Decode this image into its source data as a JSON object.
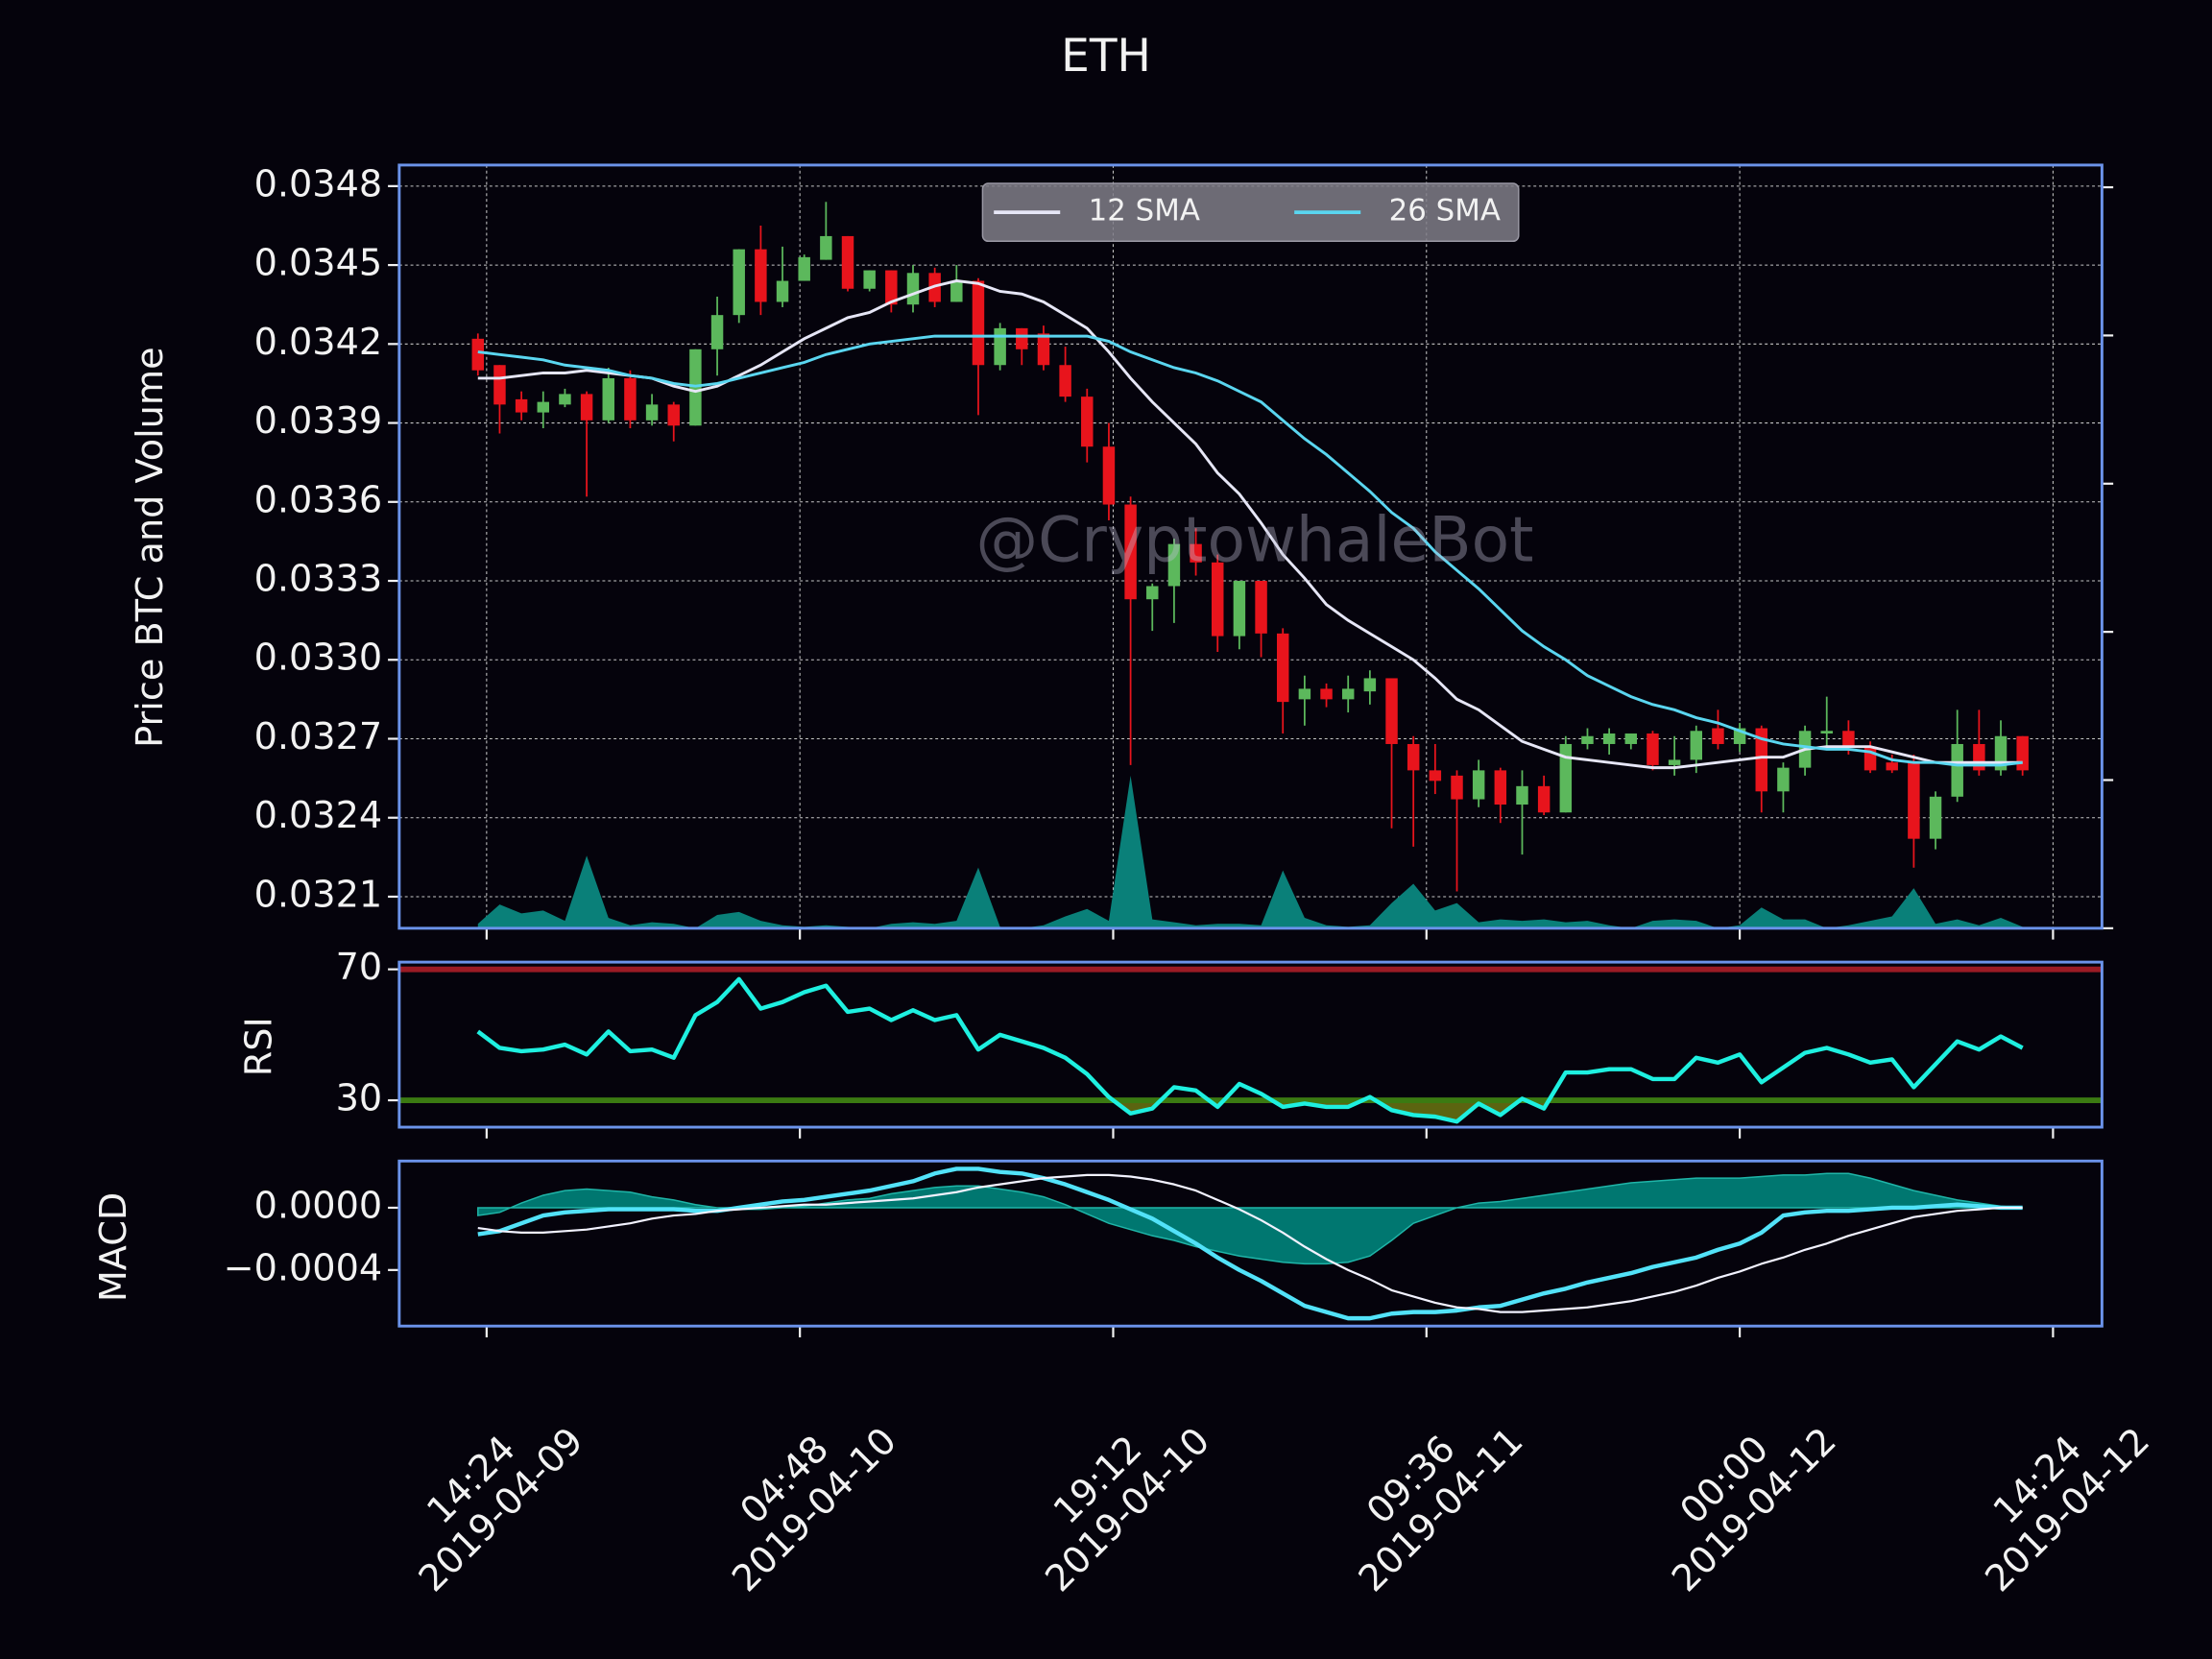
{
  "chart_data": [
    {
      "type": "candlestick",
      "title": "ETH",
      "ylabel": "Price BTC and Volume",
      "watermark": "@CryptowhaleBot",
      "x": [
        "2019-04-09 14:00",
        "2019-04-09 15:00",
        "2019-04-09 16:00",
        "2019-04-09 17:00",
        "2019-04-09 18:00",
        "2019-04-09 19:00",
        "2019-04-09 20:00",
        "2019-04-09 21:00",
        "2019-04-09 22:00",
        "2019-04-09 23:00",
        "2019-04-10 00:00",
        "2019-04-10 01:00",
        "2019-04-10 02:00",
        "2019-04-10 03:00",
        "2019-04-10 04:00",
        "2019-04-10 05:00",
        "2019-04-10 06:00",
        "2019-04-10 07:00",
        "2019-04-10 08:00",
        "2019-04-10 09:00",
        "2019-04-10 10:00",
        "2019-04-10 11:00",
        "2019-04-10 12:00",
        "2019-04-10 13:00",
        "2019-04-10 14:00",
        "2019-04-10 15:00",
        "2019-04-10 16:00",
        "2019-04-10 17:00",
        "2019-04-10 18:00",
        "2019-04-10 19:00",
        "2019-04-10 20:00",
        "2019-04-10 21:00",
        "2019-04-10 22:00",
        "2019-04-10 23:00",
        "2019-04-11 00:00",
        "2019-04-11 01:00",
        "2019-04-11 02:00",
        "2019-04-11 03:00",
        "2019-04-11 04:00",
        "2019-04-11 05:00",
        "2019-04-11 06:00",
        "2019-04-11 07:00",
        "2019-04-11 08:00",
        "2019-04-11 09:00",
        "2019-04-11 10:00",
        "2019-04-11 11:00",
        "2019-04-11 12:00",
        "2019-04-11 13:00",
        "2019-04-11 14:00",
        "2019-04-11 15:00",
        "2019-04-11 16:00",
        "2019-04-11 17:00",
        "2019-04-11 18:00",
        "2019-04-11 19:00",
        "2019-04-11 20:00",
        "2019-04-11 21:00",
        "2019-04-11 22:00",
        "2019-04-11 23:00",
        "2019-04-12 00:00",
        "2019-04-12 01:00",
        "2019-04-12 02:00",
        "2019-04-12 03:00",
        "2019-04-12 04:00",
        "2019-04-12 05:00",
        "2019-04-12 06:00",
        "2019-04-12 07:00",
        "2019-04-12 08:00",
        "2019-04-12 09:00",
        "2019-04-12 10:00",
        "2019-04-12 11:00",
        "2019-04-12 12:00",
        "2019-04-12 13:00"
      ],
      "open": [
        0.03422,
        0.03412,
        0.03399,
        0.03394,
        0.03397,
        0.03401,
        0.03391,
        0.03407,
        0.03391,
        0.03397,
        0.03389,
        0.03418,
        0.03431,
        0.03456,
        0.03436,
        0.03444,
        0.03452,
        0.03461,
        0.03441,
        0.03448,
        0.03435,
        0.03447,
        0.03436,
        0.03444,
        0.03412,
        0.03426,
        0.03424,
        0.03412,
        0.034,
        0.03381,
        0.03359,
        0.03323,
        0.03328,
        0.03344,
        0.03337,
        0.03309,
        0.0333,
        0.0331,
        0.03285,
        0.03289,
        0.03285,
        0.03288,
        0.03293,
        0.03268,
        0.03258,
        0.03256,
        0.03247,
        0.03258,
        0.03245,
        0.03252,
        0.03242,
        0.03268,
        0.03268,
        0.03268,
        0.03272,
        0.0326,
        0.03262,
        0.03274,
        0.03268,
        0.03274,
        0.0325,
        0.03259,
        0.03272,
        0.03273,
        0.03267,
        0.03261,
        0.03261,
        0.03232,
        0.03248,
        0.03268,
        0.03258,
        0.03271
      ],
      "high": [
        0.03424,
        0.03412,
        0.03402,
        0.03402,
        0.03403,
        0.03402,
        0.03411,
        0.0341,
        0.03401,
        0.03398,
        0.03418,
        0.03438,
        0.03456,
        0.03465,
        0.03457,
        0.03454,
        0.03474,
        0.03461,
        0.03448,
        0.03448,
        0.0345,
        0.03449,
        0.0345,
        0.03445,
        0.03428,
        0.03426,
        0.03427,
        0.03419,
        0.03403,
        0.0339,
        0.03362,
        0.03329,
        0.03346,
        0.0335,
        0.0334,
        0.0333,
        0.0333,
        0.03312,
        0.03294,
        0.03291,
        0.03294,
        0.03296,
        0.03293,
        0.03271,
        0.03268,
        0.03258,
        0.03262,
        0.03259,
        0.03258,
        0.03256,
        0.03271,
        0.03274,
        0.03274,
        0.03272,
        0.03273,
        0.03271,
        0.03275,
        0.03281,
        0.03276,
        0.03275,
        0.03261,
        0.03275,
        0.03286,
        0.03277,
        0.03269,
        0.03264,
        0.03264,
        0.0325,
        0.03281,
        0.03281,
        0.03277,
        0.03271
      ],
      "low": [
        0.03408,
        0.03386,
        0.03391,
        0.03388,
        0.03396,
        0.03362,
        0.0339,
        0.03388,
        0.03389,
        0.03383,
        0.03389,
        0.03408,
        0.03428,
        0.03431,
        0.03434,
        0.03444,
        0.03452,
        0.0344,
        0.0344,
        0.03432,
        0.03432,
        0.03434,
        0.03436,
        0.03393,
        0.0341,
        0.03412,
        0.0341,
        0.03398,
        0.03375,
        0.03353,
        0.0326,
        0.03311,
        0.03314,
        0.03332,
        0.03303,
        0.03304,
        0.03301,
        0.03272,
        0.03275,
        0.03282,
        0.0328,
        0.03283,
        0.03236,
        0.03229,
        0.03249,
        0.03212,
        0.03244,
        0.03238,
        0.03226,
        0.03241,
        0.03242,
        0.03266,
        0.03264,
        0.03266,
        0.03258,
        0.03256,
        0.03257,
        0.03266,
        0.03265,
        0.03242,
        0.03242,
        0.03256,
        0.03266,
        0.03264,
        0.03257,
        0.03257,
        0.03221,
        0.03228,
        0.03246,
        0.03256,
        0.03256,
        0.03256
      ],
      "close": [
        0.0341,
        0.03397,
        0.03394,
        0.03398,
        0.03401,
        0.03391,
        0.03407,
        0.03391,
        0.03397,
        0.03389,
        0.03418,
        0.03431,
        0.03456,
        0.03436,
        0.03444,
        0.03453,
        0.03461,
        0.03441,
        0.03448,
        0.03435,
        0.03447,
        0.03436,
        0.03444,
        0.03412,
        0.03426,
        0.03418,
        0.03412,
        0.034,
        0.03381,
        0.03359,
        0.03323,
        0.03328,
        0.03344,
        0.03337,
        0.03309,
        0.0333,
        0.0331,
        0.03284,
        0.03289,
        0.03285,
        0.03289,
        0.03293,
        0.03268,
        0.03258,
        0.03254,
        0.03247,
        0.03258,
        0.03245,
        0.03252,
        0.03242,
        0.03268,
        0.03271,
        0.03272,
        0.03272,
        0.0326,
        0.03262,
        0.03273,
        0.03268,
        0.03274,
        0.0325,
        0.03259,
        0.03273,
        0.03273,
        0.03267,
        0.03258,
        0.03258,
        0.03232,
        0.03248,
        0.03268,
        0.03258,
        0.03271,
        0.03258
      ],
      "up_color": "#5cb85c",
      "down_color": "#e8141c",
      "series": [
        {
          "name": "12 SMA",
          "color": "#e6e6f6",
          "values": [
            0.03407,
            0.03407,
            0.03408,
            0.03409,
            0.03409,
            0.0341,
            0.03409,
            0.03408,
            0.03407,
            0.03404,
            0.03402,
            0.03404,
            0.03408,
            0.03412,
            0.03417,
            0.03422,
            0.03426,
            0.0343,
            0.03432,
            0.03436,
            0.03439,
            0.03442,
            0.03444,
            0.03443,
            0.0344,
            0.03439,
            0.03436,
            0.03431,
            0.03426,
            0.03417,
            0.03407,
            0.03398,
            0.0339,
            0.03382,
            0.03371,
            0.03363,
            0.03352,
            0.0334,
            0.03331,
            0.03321,
            0.03315,
            0.0331,
            0.03305,
            0.033,
            0.03293,
            0.03285,
            0.03281,
            0.03275,
            0.03269,
            0.03266,
            0.03263,
            0.03262,
            0.03261,
            0.0326,
            0.03259,
            0.03259,
            0.0326,
            0.03261,
            0.03262,
            0.03263,
            0.03263,
            0.03266,
            0.03267,
            0.03267,
            0.03267,
            0.03265,
            0.03263,
            0.03261,
            0.03261,
            0.03261,
            0.03261,
            0.03261
          ]
        },
        {
          "name": "26 SMA",
          "color": "#5ad6f0",
          "values": [
            0.03417,
            0.03416,
            0.03415,
            0.03414,
            0.03412,
            0.03411,
            0.0341,
            0.03408,
            0.03407,
            0.03405,
            0.03404,
            0.03405,
            0.03407,
            0.03409,
            0.03411,
            0.03413,
            0.03416,
            0.03418,
            0.0342,
            0.03421,
            0.03422,
            0.03423,
            0.03423,
            0.03423,
            0.03423,
            0.03423,
            0.03423,
            0.03423,
            0.03423,
            0.03421,
            0.03417,
            0.03414,
            0.03411,
            0.03409,
            0.03406,
            0.03402,
            0.03398,
            0.03391,
            0.03384,
            0.03378,
            0.03371,
            0.03364,
            0.03356,
            0.0335,
            0.03341,
            0.03334,
            0.03327,
            0.03319,
            0.03311,
            0.03305,
            0.033,
            0.03294,
            0.0329,
            0.03286,
            0.03283,
            0.03281,
            0.03278,
            0.03276,
            0.03273,
            0.0327,
            0.03268,
            0.03267,
            0.03266,
            0.03266,
            0.03265,
            0.03262,
            0.03261,
            0.03261,
            0.0326,
            0.0326,
            0.0326,
            0.03261
          ]
        }
      ],
      "volume": {
        "color": "#0a8079",
        "axis": "y2",
        "values": [
          0.03,
          0.16,
          0.1,
          0.12,
          0.05,
          0.49,
          0.07,
          0.02,
          0.04,
          0.03,
          0.0,
          0.09,
          0.11,
          0.05,
          0.02,
          0.01,
          0.02,
          0.01,
          0.0,
          0.03,
          0.04,
          0.03,
          0.05,
          0.41,
          0.01,
          0.0,
          0.02,
          0.08,
          0.13,
          0.05,
          1.03,
          0.06,
          0.04,
          0.02,
          0.03,
          0.03,
          0.02,
          0.39,
          0.07,
          0.02,
          0.01,
          0.02,
          0.17,
          0.3,
          0.12,
          0.17,
          0.04,
          0.06,
          0.05,
          0.06,
          0.04,
          0.05,
          0.02,
          0.0,
          0.05,
          0.06,
          0.05,
          0.0,
          0.02,
          0.14,
          0.06,
          0.06,
          0.0,
          0.02,
          0.05,
          0.08,
          0.27,
          0.03,
          0.06,
          0.02,
          0.07,
          0.01
        ]
      },
      "xlim": [
        "2019-04-09 10:23",
        "2019-04-12 16:39"
      ],
      "xticks": [
        {
          "value": "2019-04-09 14:24",
          "label": [
            "14:24",
            "2019-04-09"
          ]
        },
        {
          "value": "2019-04-10 04:48",
          "label": [
            "04:48",
            "2019-04-10"
          ]
        },
        {
          "value": "2019-04-10 19:12",
          "label": [
            "19:12",
            "2019-04-10"
          ]
        },
        {
          "value": "2019-04-11 09:36",
          "label": [
            "09:36",
            "2019-04-11"
          ]
        },
        {
          "value": "2019-04-12 00:00",
          "label": [
            "00:00",
            "2019-04-12"
          ]
        },
        {
          "value": "2019-04-12 14:24",
          "label": [
            "14:24",
            "2019-04-12"
          ]
        }
      ],
      "ylim": [
        0.03198,
        0.03488
      ],
      "yticks": [
        0.0348,
        0.0345,
        0.0342,
        0.0339,
        0.0336,
        0.0333,
        {
          "value": 0.033,
          "label": "0.0330"
        },
        0.0327,
        0.0324,
        0.0321
      ],
      "y2lim": [
        0,
        5.15
      ],
      "y2ticks": [
        0,
        1,
        2,
        3,
        4,
        5
      ],
      "grid": true,
      "legend": "upper center"
    },
    {
      "type": "line",
      "ylabel": "RSI",
      "series": [
        {
          "color": "#1ef0e0",
          "values": [
            51,
            46,
            45,
            45.5,
            47,
            44,
            51,
            45,
            45.5,
            43,
            56,
            60,
            67,
            58,
            60,
            63,
            65,
            57,
            58,
            54.5,
            57.5,
            54.5,
            56,
            45.5,
            50,
            48,
            46,
            43,
            38,
            31,
            26,
            27.5,
            34,
            33,
            28,
            35,
            32,
            28,
            29,
            28,
            28,
            31,
            27,
            25.5,
            25,
            23.5,
            29,
            25.5,
            30.5,
            27.5,
            38.5,
            38.5,
            39.5,
            39.5,
            36.5,
            36.5,
            43,
            41.5,
            44,
            35.5,
            40,
            44.5,
            46,
            44,
            41.5,
            42.5,
            34,
            41,
            48,
            45.5,
            49.5,
            46
          ]
        }
      ],
      "bands": [
        {
          "value": 70,
          "color": "#9b1b25"
        },
        {
          "value": 30,
          "color": "#3b7a12",
          "fill": "#5b6410"
        }
      ],
      "ylim": [
        21.8,
        72.2
      ],
      "yticks": [
        30,
        70
      ],
      "grid": false
    },
    {
      "type": "line",
      "ylabel": "MACD",
      "series": [
        {
          "color": "#52e2f8",
          "width": 3,
          "values": [
            -0.00017,
            -0.00015,
            -0.0001,
            -5e-05,
            -3e-05,
            -2e-05,
            -1e-05,
            -1e-05,
            -1e-05,
            -1e-05,
            -2e-05,
            -2e-05,
            0,
            2e-05,
            4e-05,
            5e-05,
            7e-05,
            9e-05,
            0.00011,
            0.00014,
            0.00017,
            0.00022,
            0.00025,
            0.00025,
            0.00023,
            0.00022,
            0.00019,
            0.00015,
            0.0001,
            5e-05,
            -1e-05,
            -7e-05,
            -0.00015,
            -0.00023,
            -0.00032,
            -0.0004,
            -0.00047,
            -0.00055,
            -0.00063,
            -0.00067,
            -0.00071,
            -0.00071,
            -0.00068,
            -0.00067,
            -0.00067,
            -0.00066,
            -0.00064,
            -0.00063,
            -0.00059,
            -0.00055,
            -0.00052,
            -0.00048,
            -0.00045,
            -0.00042,
            -0.00038,
            -0.00035,
            -0.00032,
            -0.00027,
            -0.00023,
            -0.00016,
            -5e-05,
            -3e-05,
            -2e-05,
            -2e-05,
            -1e-05,
            0,
            0,
            1e-05,
            2e-05,
            1e-05,
            0,
            0
          ]
        },
        {
          "color": "#f2f2ff",
          "width": 1.5,
          "values": [
            -0.00013,
            -0.00015,
            -0.00016,
            -0.00016,
            -0.00015,
            -0.00014,
            -0.00012,
            -0.0001,
            -7e-05,
            -5e-05,
            -4e-05,
            -2e-05,
            -1e-05,
            0,
            1e-05,
            2e-05,
            2e-05,
            3e-05,
            4e-05,
            5e-05,
            6e-05,
            8e-05,
            0.0001,
            0.00013,
            0.00015,
            0.00017,
            0.00019,
            0.0002,
            0.00021,
            0.00021,
            0.0002,
            0.00018,
            0.00015,
            0.00011,
            5e-05,
            -1e-05,
            -8e-05,
            -0.00016,
            -0.00025,
            -0.00033,
            -0.0004,
            -0.00046,
            -0.00053,
            -0.00057,
            -0.00061,
            -0.00064,
            -0.00065,
            -0.00067,
            -0.00067,
            -0.00066,
            -0.00065,
            -0.00064,
            -0.00062,
            -0.0006,
            -0.00057,
            -0.00054,
            -0.0005,
            -0.00045,
            -0.00041,
            -0.00036,
            -0.00032,
            -0.00027,
            -0.00023,
            -0.00018,
            -0.00014,
            -0.0001,
            -6e-05,
            -4e-05,
            -2e-05,
            -1e-05,
            0,
            0
          ]
        }
      ],
      "histogram": {
        "color": "#008c82",
        "values": [
          -5e-05,
          -3e-05,
          3e-05,
          8e-05,
          0.00011,
          0.00012,
          0.00011,
          0.0001,
          7e-05,
          5e-05,
          2e-05,
          0,
          -1e-05,
          -1e-05,
          0,
          1e-05,
          3e-05,
          5e-05,
          6e-05,
          9e-05,
          0.00011,
          0.00013,
          0.00014,
          0.00014,
          0.00012,
          0.0001,
          7e-05,
          2e-05,
          -4e-05,
          -0.0001,
          -0.00014,
          -0.00018,
          -0.00021,
          -0.00025,
          -0.00028,
          -0.00031,
          -0.00033,
          -0.00035,
          -0.00036,
          -0.00036,
          -0.00035,
          -0.00031,
          -0.00021,
          -0.0001,
          -5e-05,
          0,
          3e-05,
          4e-05,
          6e-05,
          8e-05,
          0.0001,
          0.00012,
          0.00014,
          0.00016,
          0.00017,
          0.00018,
          0.00019,
          0.00019,
          0.00019,
          0.0002,
          0.00021,
          0.00021,
          0.00022,
          0.00022,
          0.00019,
          0.00015,
          0.00011,
          8e-05,
          5e-05,
          3e-05,
          1e-05,
          0
        ]
      },
      "ylim": [
        -0.00076,
        0.0003
      ],
      "yticks": [
        {
          "value": 0,
          "label": "0.0000"
        },
        {
          "value": -0.0004,
          "label": "−0.0004"
        }
      ],
      "grid": false
    }
  ]
}
